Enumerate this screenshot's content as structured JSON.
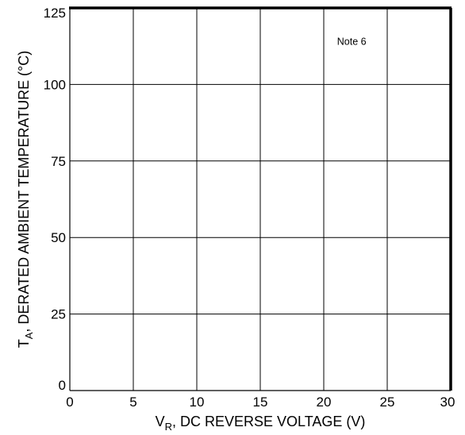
{
  "chart_data": {
    "type": "line",
    "xlabel": {
      "main": "V",
      "sub": "R",
      "rest": ", DC REVERSE VOLTAGE (V)"
    },
    "ylabel": {
      "main": "T",
      "sub": "A",
      "rest": ", DERATED AMBIENT TEMPERATURE (°C)"
    },
    "xlim": [
      0,
      30
    ],
    "ylim": [
      0,
      125
    ],
    "x_ticks": [
      "0",
      "5",
      "10",
      "15",
      "20",
      "25",
      "30"
    ],
    "y_ticks": [
      "0",
      "25",
      "50",
      "75",
      "100",
      "125"
    ],
    "grid": true,
    "series": [],
    "annotations": [
      {
        "text": "Note 6",
        "x": 22.2,
        "y": 113
      }
    ]
  }
}
